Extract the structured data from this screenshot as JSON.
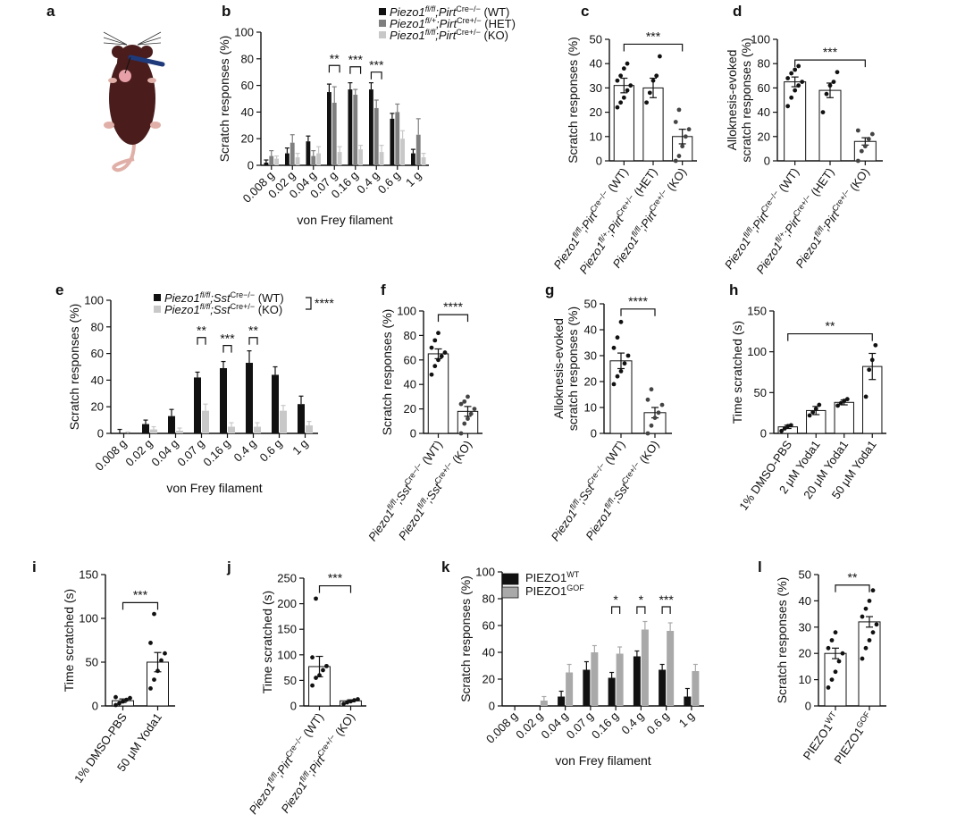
{
  "colors": {
    "wt": "#111111",
    "het": "#7f7f7f",
    "ko": "#c8c8c8",
    "gof": "#a9a9a9",
    "mouse": "#4a1c1c",
    "probe": "#1f3a7a"
  },
  "icons": {
    "mouse": "mouse-illustration",
    "probe": "von-frey-probe"
  },
  "charts": [
    {
      "key": "a",
      "panel_label": "a",
      "type": "illustration"
    },
    {
      "key": "b",
      "panel_label": "b",
      "type": "bar",
      "ylabel": "Scratch responses (%)",
      "xlabel": "von Frey filament",
      "ylim": [
        0,
        100
      ],
      "yticks": [
        0,
        20,
        40,
        60,
        80,
        100
      ],
      "categories": [
        "0.008 g",
        "0.02 g",
        "0.04 g",
        "0.07 g",
        "0.16 g",
        "0.4 g",
        "0.6 g",
        "1 g"
      ],
      "series": [
        {
          "name": "Piezo1fl/fl;PirtCre−/− (WT)",
          "legend_main": "Piezo1",
          "legend_sup1": "fl/fl",
          "legend_mid": ";Pirt",
          "legend_sup2": "Cre−/−",
          "legend_end": " (WT)",
          "color_key": "wt",
          "values": [
            2,
            9,
            18,
            55,
            57,
            57,
            35,
            9
          ],
          "errors": [
            2,
            4,
            4,
            6,
            5,
            5,
            4,
            3
          ]
        },
        {
          "name": "Piezo1fl/+;PirtCre+/− (HET)",
          "legend_main": "Piezo1",
          "legend_sup1": "fl/+",
          "legend_mid": ";Pirt",
          "legend_sup2": "Cre+/−",
          "legend_end": " (HET)",
          "color_key": "het",
          "values": [
            7,
            17,
            7,
            47,
            53,
            43,
            40,
            23
          ],
          "errors": [
            4,
            6,
            4,
            12,
            4,
            6,
            6,
            12
          ]
        },
        {
          "name": "Piezo1fl/fl;PirtCre+/− (KO)",
          "legend_main": "Piezo1",
          "legend_sup1": "fl/fl",
          "legend_mid": ";Pirt",
          "legend_sup2": "Cre+/−",
          "legend_end": " (KO)",
          "color_key": "ko",
          "values": [
            5,
            6,
            9,
            10,
            12,
            10,
            20,
            6
          ],
          "errors": [
            2,
            3,
            5,
            4,
            3,
            5,
            6,
            3
          ]
        }
      ],
      "significance": [
        {
          "from": 3,
          "to": 3,
          "label": "**",
          "y": 75
        },
        {
          "from": 4,
          "to": 4,
          "label": "***",
          "y": 74
        },
        {
          "from": 5,
          "to": 5,
          "label": "***",
          "y": 70
        }
      ]
    },
    {
      "key": "c",
      "panel_label": "c",
      "type": "scatter_bar",
      "ylabel": "Scratch responses (%)",
      "ylim": [
        0,
        50
      ],
      "yticks": [
        0,
        10,
        20,
        30,
        40,
        50
      ],
      "groups": [
        {
          "label_main": "Piezo1",
          "label_sup1": "fl/fl",
          "label_mid": ";Pirt",
          "label_sup2": "Cre−/−",
          "label_end": " (WT)",
          "fill_key": "wt",
          "mean": 31,
          "sem": 3,
          "points": [
            22,
            24,
            26,
            29,
            31,
            33,
            35,
            38,
            40
          ]
        },
        {
          "label_main": "Piezo1",
          "label_sup1": "fl/+",
          "label_mid": ";Pirt",
          "label_sup2": "Cre+/−",
          "label_end": " (HET)",
          "fill_key": "het",
          "mean": 30,
          "sem": 4,
          "points": [
            24,
            28,
            33,
            35,
            43
          ]
        },
        {
          "label_main": "Piezo1",
          "label_sup1": "fl/fl",
          "label_mid": ";Pirt",
          "label_sup2": "Cre+/−",
          "label_end": " (KO)",
          "fill_key": "ko",
          "mean": 10,
          "sem": 3,
          "points": [
            0,
            2,
            6,
            10,
            13,
            16,
            21
          ]
        }
      ],
      "significance": [
        {
          "from": 0,
          "to": 2,
          "label": "***",
          "y": 48
        }
      ]
    },
    {
      "key": "d",
      "panel_label": "d",
      "type": "scatter_bar",
      "ylabel": "Alloknesis-evoked scratch responses (%)",
      "ylabel_line1": "Alloknesis-evoked",
      "ylabel_line2": "scratch responses (%)",
      "ylim": [
        0,
        100
      ],
      "yticks": [
        0,
        20,
        40,
        60,
        80,
        100
      ],
      "groups": [
        {
          "label_main": "Piezo1",
          "label_sup1": "fl/fl",
          "label_mid": ";Pirt",
          "label_sup2": "Cre−/−",
          "label_end": " (WT)",
          "fill_key": "wt",
          "mean": 65,
          "sem": 4,
          "points": [
            45,
            52,
            58,
            62,
            65,
            68,
            72,
            75,
            78
          ]
        },
        {
          "label_main": "Piezo1",
          "label_sup1": "fl/+",
          "label_mid": ";Pirt",
          "label_sup2": "Cre+/−",
          "label_end": " (HET)",
          "fill_key": "het",
          "mean": 58,
          "sem": 6,
          "points": [
            40,
            55,
            62,
            65,
            73
          ]
        },
        {
          "label_main": "Piezo1",
          "label_sup1": "fl/fl",
          "label_mid": ";Pirt",
          "label_sup2": "Cre+/−",
          "label_end": " (KO)",
          "fill_key": "ko",
          "mean": 16,
          "sem": 3,
          "points": [
            0,
            8,
            12,
            18,
            22,
            25
          ]
        }
      ],
      "significance": [
        {
          "from": 0,
          "to": 2,
          "label": "***",
          "y": 83
        }
      ]
    },
    {
      "key": "e",
      "panel_label": "e",
      "type": "bar",
      "ylabel": "Scratch responses (%)",
      "xlabel": "von Frey filament",
      "ylim": [
        0,
        100
      ],
      "yticks": [
        0,
        20,
        40,
        60,
        80,
        100
      ],
      "categories": [
        "0.008 g",
        "0.02 g",
        "0.04 g",
        "0.07 g",
        "0.16 g",
        "0.4 g",
        "0.6 g",
        "1 g"
      ],
      "series": [
        {
          "name": "Piezo1fl/fl;SstCre−/− (WT)",
          "legend_main": "Piezo1",
          "legend_sup1": "fl/fl",
          "legend_mid": ";Sst",
          "legend_sup2": "Cre−/−",
          "legend_end": " (WT)",
          "color_key": "wt",
          "values": [
            0,
            7,
            13,
            42,
            49,
            53,
            44,
            22
          ],
          "errors": [
            3,
            3,
            5,
            4,
            5,
            9,
            6,
            6
          ]
        },
        {
          "name": "Piezo1fl/fl;SstCre+/− (KO)",
          "legend_main": "Piezo1",
          "legend_sup1": "fl/fl",
          "legend_mid": ";Sst",
          "legend_sup2": "Cre+/−",
          "legend_end": " (KO)",
          "color_key": "ko",
          "values": [
            0,
            3,
            2,
            17,
            5,
            5,
            17,
            6
          ],
          "errors": [
            1,
            2,
            2,
            5,
            3,
            3,
            4,
            3
          ]
        }
      ],
      "legend_significance": "****",
      "significance": [
        {
          "from": 3,
          "to": 3,
          "label": "**",
          "y": 72
        },
        {
          "from": 4,
          "to": 4,
          "label": "***",
          "y": 66
        },
        {
          "from": 5,
          "to": 5,
          "label": "**",
          "y": 72
        }
      ]
    },
    {
      "key": "f",
      "panel_label": "f",
      "type": "scatter_bar",
      "ylabel": "Scratch responses (%)",
      "ylim": [
        0,
        100
      ],
      "yticks": [
        0,
        20,
        40,
        60,
        80,
        100
      ],
      "groups": [
        {
          "label_main": "Piezo1",
          "label_sup1": "fl/fl",
          "label_mid": ";Sst",
          "label_sup2": "Cre−/−",
          "label_end": " (WT)",
          "fill_key": "wt",
          "mean": 65,
          "sem": 4,
          "points": [
            48,
            55,
            60,
            63,
            66,
            70,
            76,
            82
          ]
        },
        {
          "label_main": "Piezo1",
          "label_sup1": "fl/fl",
          "label_mid": ";Sst",
          "label_sup2": "Cre+/−",
          "label_end": " (KO)",
          "fill_key": "ko",
          "mean": 18,
          "sem": 4,
          "points": [
            0,
            8,
            12,
            16,
            20,
            24,
            26,
            30
          ]
        }
      ],
      "significance": [
        {
          "from": 0,
          "to": 1,
          "label": "****",
          "y": 97
        }
      ]
    },
    {
      "key": "g",
      "panel_label": "g",
      "type": "scatter_bar",
      "ylabel": "Alloknesis-evoked scratch responses (%)",
      "ylabel_line1": "Alloknesis-evoked",
      "ylabel_line2": "scratch responses (%)",
      "ylim": [
        0,
        50
      ],
      "yticks": [
        0,
        10,
        20,
        30,
        40,
        50
      ],
      "groups": [
        {
          "label_main": "Piezo1",
          "label_sup1": "fl/fl",
          "label_mid": ";Sst",
          "label_sup2": "Cre−/−",
          "label_end": " (WT)",
          "fill_key": "wt",
          "mean": 28,
          "sem": 3,
          "points": [
            19,
            22,
            24,
            27,
            30,
            33,
            37,
            43
          ]
        },
        {
          "label_main": "Piezo1",
          "label_sup1": "fl/fl",
          "label_mid": ";Sst",
          "label_sup2": "Cre+/−",
          "label_end": " (KO)",
          "fill_key": "ko",
          "mean": 8,
          "sem": 2,
          "points": [
            0,
            3,
            6,
            8,
            11,
            13,
            17
          ]
        }
      ],
      "significance": [
        {
          "from": 0,
          "to": 1,
          "label": "****",
          "y": 48
        }
      ]
    },
    {
      "key": "h",
      "panel_label": "h",
      "type": "scatter_bar",
      "ylabel": "Time scratched (s)",
      "ylim": [
        0,
        150
      ],
      "yticks": [
        0,
        50,
        100,
        150
      ],
      "groups": [
        {
          "label_main": "1% DMSO-PBS",
          "fill_key": "none",
          "mean": 8,
          "sem": 2,
          "points": [
            3,
            6,
            9,
            10
          ]
        },
        {
          "label_main": "2 μM Yoda1",
          "fill_key": "none",
          "mean": 28,
          "sem": 5,
          "points": [
            22,
            26,
            30,
            35
          ]
        },
        {
          "label_main": "20 μM Yoda1",
          "fill_key": "none",
          "mean": 38,
          "sem": 3,
          "points": [
            34,
            37,
            40,
            42
          ]
        },
        {
          "label_main": "50 μM Yoda1",
          "fill_key": "none",
          "mean": 82,
          "sem": 16,
          "points": [
            45,
            78,
            90,
            108
          ]
        }
      ],
      "significance": [
        {
          "from": 0,
          "to": 3,
          "label": "**",
          "y": 122
        }
      ]
    },
    {
      "key": "i",
      "panel_label": "i",
      "type": "scatter_bar",
      "ylabel": "Time scratched (s)",
      "ylim": [
        0,
        150
      ],
      "yticks": [
        0,
        50,
        100,
        150
      ],
      "groups": [
        {
          "label_main": "1% DMSO-PBS",
          "fill_key": "none",
          "mean": 6,
          "sem": 2,
          "points": [
            1,
            3,
            5,
            7,
            9,
            10
          ]
        },
        {
          "label_main": "50 μM Yoda1",
          "fill_key": "none",
          "mean": 50,
          "sem": 11,
          "points": [
            20,
            30,
            40,
            52,
            60,
            72,
            105
          ]
        }
      ],
      "significance": [
        {
          "from": 0,
          "to": 1,
          "label": "***",
          "y": 118
        }
      ]
    },
    {
      "key": "j",
      "panel_label": "j",
      "type": "scatter_bar",
      "ylabel": "Time scratched (s)",
      "ylim": [
        0,
        250
      ],
      "yticks": [
        0,
        50,
        100,
        150,
        200,
        250
      ],
      "groups": [
        {
          "label_main": "Piezo1",
          "label_sup1": "fl/fl",
          "label_mid": ";Pirt",
          "label_sup2": "Cre−/−",
          "label_end": " (WT)",
          "fill_key": "none",
          "mean": 77,
          "sem": 20,
          "points": [
            40,
            55,
            60,
            70,
            78,
            95,
            210
          ]
        },
        {
          "label_main": "Piezo1",
          "label_sup1": "fl/fl",
          "label_mid": ";Pirt",
          "label_sup2": "Cre+/−",
          "label_end": " (KO)",
          "fill_key": "none",
          "mean": 10,
          "sem": 2,
          "points": [
            4,
            7,
            9,
            11,
            13
          ]
        }
      ],
      "significance": [
        {
          "from": 0,
          "to": 1,
          "label": "***",
          "y": 235
        }
      ]
    },
    {
      "key": "k",
      "panel_label": "k",
      "type": "bar",
      "ylabel": "Scratch responses (%)",
      "xlabel": "von Frey filament",
      "ylim": [
        0,
        100
      ],
      "yticks": [
        0,
        20,
        40,
        60,
        80,
        100
      ],
      "categories": [
        "0.008 g",
        "0.02 g",
        "0.04 g",
        "0.07 g",
        "0.16 g",
        "0.4 g",
        "0.6 g",
        "1 g"
      ],
      "series": [
        {
          "name": "PIEZO1WT",
          "legend_main": "PIEZO1",
          "legend_sup1": "WT",
          "color_key": "wt",
          "values": [
            0,
            0,
            7,
            27,
            21,
            37,
            27,
            7
          ],
          "errors": [
            0,
            0,
            4,
            6,
            4,
            4,
            4,
            6
          ]
        },
        {
          "name": "PIEZO1GOF",
          "legend_main": "PIEZO1",
          "legend_sup1": "GOF",
          "color_key": "gof",
          "values": [
            0,
            4,
            25,
            40,
            39,
            57,
            56,
            26
          ],
          "errors": [
            0,
            3,
            6,
            5,
            5,
            6,
            6,
            5
          ]
        }
      ],
      "significance": [
        {
          "from": 4,
          "to": 4,
          "label": "*",
          "y": 74
        },
        {
          "from": 5,
          "to": 5,
          "label": "*",
          "y": 74
        },
        {
          "from": 6,
          "to": 6,
          "label": "***",
          "y": 74
        }
      ]
    },
    {
      "key": "l",
      "panel_label": "l",
      "type": "scatter_bar",
      "ylabel": "Scratch responses (%)",
      "ylim": [
        0,
        50
      ],
      "yticks": [
        0,
        10,
        20,
        30,
        40,
        50
      ],
      "groups": [
        {
          "label_main": "PIEZO1",
          "label_sup1": "WT",
          "fill_key": "none",
          "mean": 20,
          "sem": 2,
          "points": [
            7,
            10,
            13,
            17,
            20,
            22,
            25,
            28
          ]
        },
        {
          "label_main": "PIEZO1",
          "label_sup1": "GOF",
          "fill_key": "none",
          "mean": 32,
          "sem": 2,
          "points": [
            18,
            22,
            25,
            28,
            31,
            34,
            37,
            40,
            44
          ]
        }
      ],
      "significance": [
        {
          "from": 0,
          "to": 1,
          "label": "**",
          "y": 46
        }
      ]
    }
  ]
}
